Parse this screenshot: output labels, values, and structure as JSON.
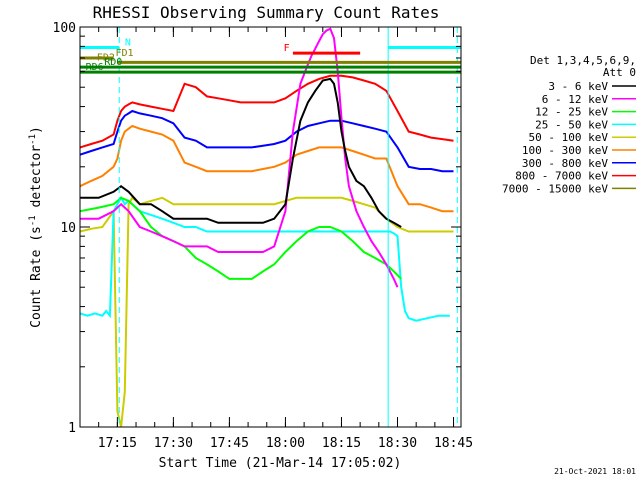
{
  "chart_data": {
    "type": "line",
    "title": "RHESSI Observing Summary Count Rates",
    "xlabel": "Start Time (21-Mar-14 17:05:02)",
    "ylabel": "Count Rate (s-1 detector-1)",
    "ylabel_main": "Count Rate (s",
    "ylabel_sup1": "-1",
    "ylabel_mid": " detector",
    "ylabel_sup2": "-1",
    "ylabel_end": ")",
    "yscale": "log",
    "ylim": [
      1,
      100
    ],
    "xlim_minutes": [
      0,
      102
    ],
    "x_ticks": [
      {
        "m": 10,
        "label": "17:15"
      },
      {
        "m": 25,
        "label": "17:30"
      },
      {
        "m": 40,
        "label": "17:45"
      },
      {
        "m": 55,
        "label": "18:00"
      },
      {
        "m": 70,
        "label": "18:15"
      },
      {
        "m": 85,
        "label": "18:30"
      },
      {
        "m": 100,
        "label": "18:45"
      }
    ],
    "y_ticks": [
      {
        "v": 1,
        "label": "1"
      },
      {
        "v": 10,
        "label": "10"
      },
      {
        "v": 100,
        "label": "100"
      }
    ],
    "legend_header": [
      "Det 1,3,4,5,6,9,",
      "Att 0"
    ],
    "legend_position": "right",
    "series": [
      {
        "name": "3 - 6 keV",
        "color": "#000000",
        "x": [
          0,
          5,
          9,
          11,
          13,
          16,
          19,
          22,
          25,
          28,
          31,
          34,
          37,
          40,
          43,
          46,
          49,
          52,
          55,
          57,
          59,
          61,
          63,
          65,
          67,
          68,
          69,
          70,
          71,
          72,
          74,
          76,
          78,
          80,
          82,
          84,
          86
        ],
        "y": [
          14,
          14,
          15,
          16,
          15,
          13,
          13,
          12,
          11,
          11,
          11,
          11,
          10.5,
          10.5,
          10.5,
          10.5,
          10.5,
          11,
          13,
          22,
          34,
          42,
          48,
          54,
          55,
          52,
          42,
          30,
          24,
          20,
          17,
          16,
          14,
          12,
          11,
          10.5,
          10
        ]
      },
      {
        "name": "6 - 12 keV",
        "color": "#ff00ff",
        "x": [
          0,
          5,
          9,
          11,
          13,
          16,
          19,
          22,
          25,
          28,
          31,
          34,
          37,
          40,
          43,
          46,
          49,
          52,
          55,
          57,
          59,
          61,
          62,
          63,
          64,
          65,
          66,
          67,
          68,
          69,
          70,
          71,
          72,
          74,
          76,
          78,
          80,
          82,
          84,
          85
        ],
        "y": [
          11,
          11,
          12,
          13,
          12,
          10,
          9.5,
          9,
          8.5,
          8,
          8,
          8,
          7.5,
          7.5,
          7.5,
          7.5,
          7.5,
          8,
          12,
          30,
          52,
          65,
          72,
          78,
          85,
          92,
          96,
          98,
          88,
          60,
          35,
          22,
          16,
          12,
          10,
          8.5,
          7.5,
          6.5,
          5.5,
          5
        ]
      },
      {
        "name": "12 - 25 keV",
        "color": "#00ff00",
        "x": [
          0,
          5,
          9,
          11,
          13,
          16,
          19,
          22,
          25,
          28,
          31,
          34,
          37,
          40,
          43,
          46,
          49,
          52,
          55,
          58,
          61,
          64,
          67,
          70,
          73,
          76,
          79,
          82,
          84,
          86
        ],
        "y": [
          12,
          12.5,
          13,
          14,
          13.5,
          12,
          10,
          9,
          8.5,
          8,
          7,
          6.5,
          6,
          5.5,
          5.5,
          5.5,
          6,
          6.5,
          7.5,
          8.5,
          9.5,
          10,
          10,
          9.5,
          8.5,
          7.5,
          7,
          6.5,
          6,
          5.5
        ]
      },
      {
        "name": "25 - 50 keV",
        "color": "#00ffff",
        "x": [
          0,
          2,
          4,
          6,
          7,
          8,
          9,
          10,
          11,
          12,
          13,
          14,
          16,
          19,
          22,
          25,
          28,
          31,
          34,
          37,
          40,
          43,
          46,
          49,
          52,
          55,
          58,
          61,
          64,
          67,
          70,
          73,
          76,
          79,
          82,
          83,
          84,
          85,
          86,
          87,
          88,
          90,
          93,
          96,
          99
        ],
        "y": [
          3.7,
          3.6,
          3.7,
          3.6,
          3.8,
          3.6,
          12,
          13,
          14,
          13,
          13.5,
          13,
          12,
          11.5,
          11,
          10.5,
          10,
          10,
          9.5,
          9.5,
          9.5,
          9.5,
          9.5,
          9.5,
          9.5,
          9.5,
          9.5,
          9.5,
          9.5,
          9.5,
          9.5,
          9.5,
          9.5,
          9.5,
          9.5,
          9.5,
          9.3,
          9,
          5,
          3.8,
          3.5,
          3.4,
          3.5,
          3.6,
          3.6
        ]
      },
      {
        "name": "50 - 100 keV",
        "color": "#cccc00",
        "x": [
          0,
          3,
          6,
          9,
          10,
          11,
          12,
          13,
          14,
          16,
          19,
          22,
          25,
          28,
          31,
          34,
          37,
          40,
          43,
          46,
          49,
          52,
          55,
          58,
          61,
          64,
          67,
          70,
          73,
          76,
          79,
          82,
          85,
          88,
          91,
          94,
          97,
          100
        ],
        "y": [
          9.5,
          9.8,
          10,
          12,
          1.2,
          1,
          1.5,
          13,
          14,
          13,
          13.5,
          14,
          13,
          13,
          13,
          13,
          13,
          13,
          13,
          13,
          13,
          13,
          13.5,
          14,
          14,
          14,
          14,
          14,
          13.5,
          13,
          12.5,
          11,
          10,
          9.5,
          9.5,
          9.5,
          9.5,
          9.5
        ]
      },
      {
        "name": "100 - 300 keV",
        "color": "#ff8000",
        "x": [
          0,
          3,
          6,
          9,
          10,
          11,
          12,
          13,
          14,
          16,
          19,
          22,
          25,
          28,
          31,
          34,
          37,
          40,
          43,
          46,
          49,
          52,
          55,
          58,
          61,
          64,
          67,
          70,
          73,
          76,
          79,
          82,
          85,
          88,
          91,
          94,
          97,
          100
        ],
        "y": [
          16,
          17,
          18,
          20,
          22,
          27,
          30,
          31,
          32,
          31,
          30,
          29,
          27,
          21,
          20,
          19,
          19,
          19,
          19,
          19,
          19.5,
          20,
          21,
          23,
          24,
          25,
          25,
          25,
          24,
          23,
          22,
          22,
          16,
          13,
          13,
          12.5,
          12,
          12
        ]
      },
      {
        "name": "300 - 800 keV",
        "color": "#0000ff",
        "x": [
          0,
          3,
          6,
          9,
          10,
          11,
          12,
          13,
          14,
          16,
          19,
          22,
          25,
          28,
          31,
          34,
          37,
          40,
          43,
          46,
          49,
          52,
          55,
          58,
          61,
          64,
          67,
          70,
          73,
          76,
          79,
          82,
          85,
          88,
          91,
          94,
          97,
          100
        ],
        "y": [
          23,
          24,
          25,
          26,
          30,
          34,
          36,
          37,
          38,
          37,
          36,
          35,
          33,
          28,
          27,
          25,
          25,
          25,
          25,
          25,
          25.5,
          26,
          27,
          30,
          32,
          33,
          34,
          34,
          33,
          32,
          31,
          30,
          25,
          20,
          19.5,
          19.5,
          19,
          19
        ]
      },
      {
        "name": "800 - 7000 keV",
        "color": "#ff0000",
        "x": [
          0,
          3,
          6,
          9,
          10,
          11,
          12,
          13,
          14,
          16,
          19,
          22,
          25,
          28,
          31,
          34,
          37,
          40,
          43,
          46,
          49,
          52,
          55,
          58,
          61,
          64,
          67,
          70,
          73,
          76,
          79,
          82,
          85,
          88,
          91,
          94,
          97,
          100
        ],
        "y": [
          25,
          26,
          27,
          29,
          34,
          38,
          40,
          41,
          42,
          41,
          40,
          39,
          38,
          52,
          50,
          45,
          44,
          43,
          42,
          42,
          42,
          42,
          44,
          48,
          52,
          55,
          57,
          57,
          56,
          54,
          52,
          48,
          38,
          30,
          29,
          28,
          27.5,
          27
        ]
      },
      {
        "name": "7000 - 15000 keV",
        "color": "#808000",
        "x": [],
        "y": []
      }
    ],
    "status_bars": [
      {
        "label": "N",
        "color": "#00ffff",
        "x0": 0,
        "x1": 10.5,
        "y": 79,
        "label_at": 12
      },
      {
        "label": "",
        "color": "#00ffff",
        "x0": 82.5,
        "x1": 102,
        "y": 79,
        "label_at": null
      },
      {
        "label": "F",
        "color": "#ff0000",
        "x0": 57,
        "x1": 75,
        "y": 74,
        "label_at": 54.5
      },
      {
        "label": "FD1",
        "color": "#808000",
        "x0": 0,
        "x1": 9,
        "y": 70,
        "label_at": 9.5
      },
      {
        "label": "FD2",
        "color": "#808000",
        "x0": 10,
        "x1": 102,
        "y": 66.5,
        "label_at": 4.5
      },
      {
        "label": "RD0",
        "color": "#008000",
        "x0": 0,
        "x1": 102,
        "y": 63,
        "label_at": 6.5
      },
      {
        "label": "RD6",
        "color": "#008000",
        "x0": 0,
        "x1": 102,
        "y": 59.5,
        "label_at": 1.5
      }
    ],
    "vertical_markers": [
      {
        "m": 10.5,
        "style": "dashed",
        "color": "#00ffff"
      },
      {
        "m": 82.5,
        "style": "solid",
        "color": "#00ffff"
      },
      {
        "m": 101,
        "style": "dashed",
        "color": "#00ffff"
      }
    ],
    "footer": "21-Oct-2021 18:01"
  }
}
